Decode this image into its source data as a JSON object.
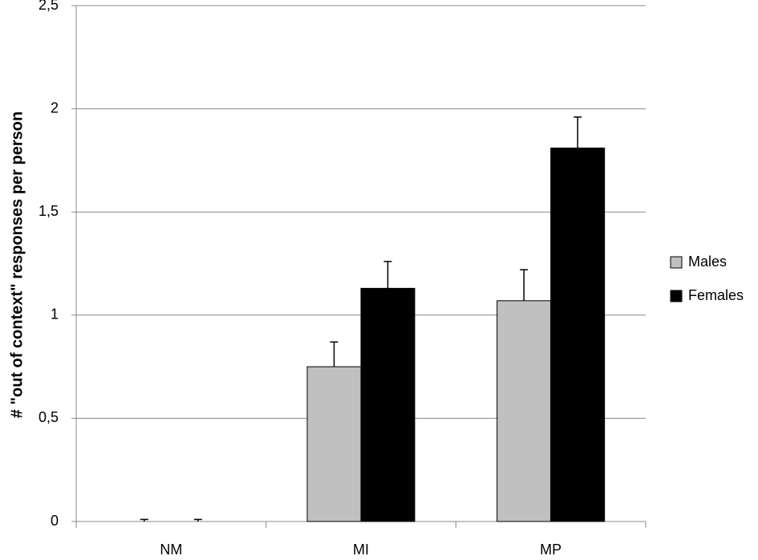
{
  "chart_data": {
    "type": "bar",
    "y_label": "# \"out of context\" responses per person",
    "categories": [
      "NM",
      "MI",
      "MP"
    ],
    "series": [
      {
        "name": "Males",
        "color": "#c0c0c0",
        "values": [
          0,
          0.75,
          1.07
        ],
        "errors": [
          0.01,
          0.12,
          0.15
        ]
      },
      {
        "name": "Females",
        "color": "#000000",
        "values": [
          0,
          1.13,
          1.81
        ],
        "errors": [
          0.01,
          0.13,
          0.15
        ]
      }
    ],
    "ylim": [
      0,
      2.5
    ],
    "yticks": [
      0,
      {
        "value": 0.5,
        "label": "0,5"
      },
      1,
      {
        "value": 1.5,
        "label": "1,5"
      },
      2,
      {
        "value": 2.5,
        "label": "2,5"
      }
    ],
    "grid": true,
    "legend": "right"
  }
}
